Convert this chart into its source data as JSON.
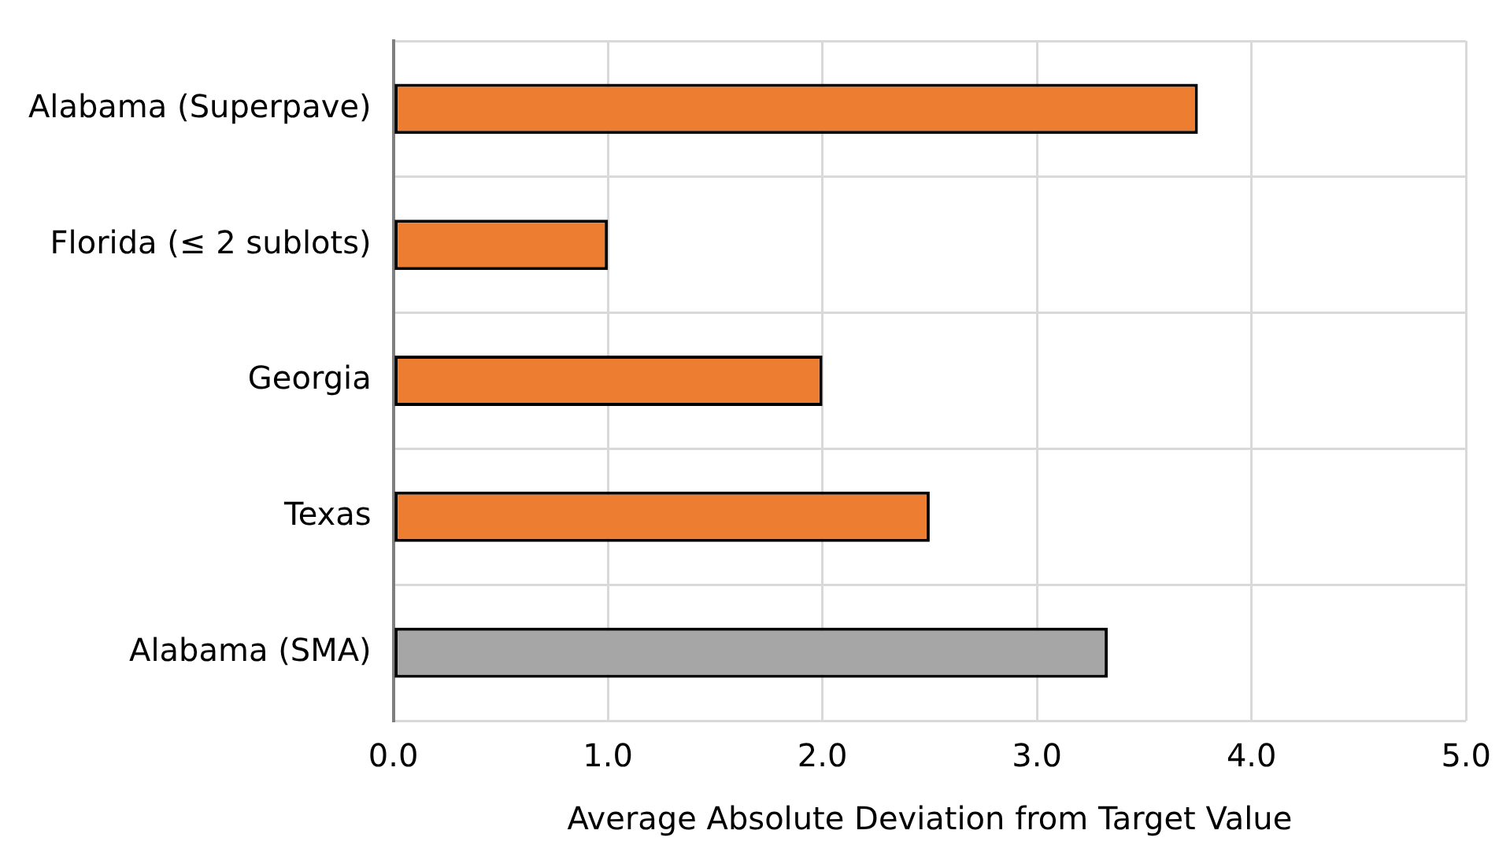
{
  "chart_data": {
    "type": "bar",
    "orientation": "horizontal",
    "categories": [
      "Alabama (Superpave)",
      "Florida (≤ 2 sublots)",
      "Georgia",
      "Texas",
      "Alabama (SMA)"
    ],
    "values": [
      3.75,
      1.0,
      2.0,
      2.5,
      3.33
    ],
    "colors": [
      "#ed7d31",
      "#ed7d31",
      "#ed7d31",
      "#ed7d31",
      "#a6a6a6"
    ],
    "xlabel": "Average Absolute Deviation from Target Value",
    "xlim": [
      0,
      5
    ],
    "xticks": [
      {
        "value": 0,
        "label": "0.0"
      },
      {
        "value": 1,
        "label": "1.0"
      },
      {
        "value": 2,
        "label": "2.0"
      },
      {
        "value": 3,
        "label": "3.0"
      },
      {
        "value": 4,
        "label": "4.0"
      },
      {
        "value": 5,
        "label": "5.0"
      }
    ],
    "grid": true,
    "legend": false
  }
}
